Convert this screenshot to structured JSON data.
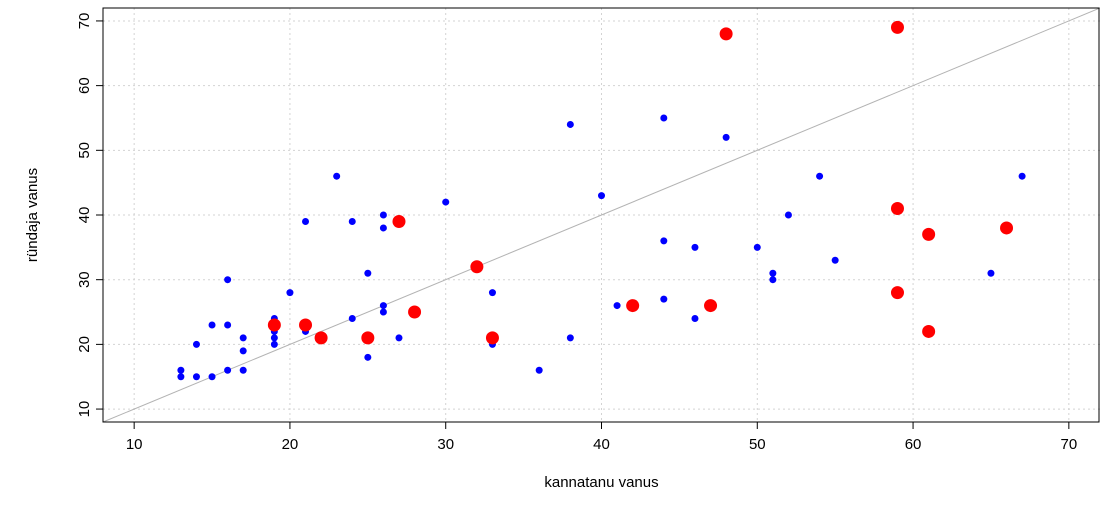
{
  "chart_data": {
    "type": "scatter",
    "xlabel": "kannatanu vanus",
    "ylabel": "ründaja vanus",
    "xlim": [
      8,
      72
    ],
    "ylim": [
      8,
      72
    ],
    "xticks": [
      "10",
      "20",
      "30",
      "40",
      "50",
      "60",
      "70"
    ],
    "yticks": [
      "10",
      "20",
      "30",
      "40",
      "50",
      "60",
      "70"
    ],
    "grid": true,
    "reference_line": {
      "type": "y=x"
    },
    "colors": {
      "series_1": "#0000ff",
      "series_2": "#ff0000",
      "reference_line": "#b3b3b3"
    },
    "series": [
      {
        "color": "#0000ff",
        "marker_size": "small",
        "points": [
          [
            13,
            16
          ],
          [
            13,
            15
          ],
          [
            14,
            15
          ],
          [
            14,
            20
          ],
          [
            15,
            15
          ],
          [
            15,
            23
          ],
          [
            16,
            30
          ],
          [
            16,
            23
          ],
          [
            16,
            16
          ],
          [
            17,
            21
          ],
          [
            17,
            19
          ],
          [
            17,
            16
          ],
          [
            19,
            24
          ],
          [
            19,
            23
          ],
          [
            19,
            22
          ],
          [
            19,
            21
          ],
          [
            19,
            20
          ],
          [
            20,
            28
          ],
          [
            21,
            39
          ],
          [
            21,
            22
          ],
          [
            22,
            21
          ],
          [
            23,
            46
          ],
          [
            24,
            39
          ],
          [
            24,
            24
          ],
          [
            25,
            31
          ],
          [
            25,
            18
          ],
          [
            26,
            40
          ],
          [
            26,
            38
          ],
          [
            26,
            26
          ],
          [
            26,
            25
          ],
          [
            27,
            21
          ],
          [
            30,
            42
          ],
          [
            33,
            28
          ],
          [
            33,
            20
          ],
          [
            36,
            16
          ],
          [
            38,
            54
          ],
          [
            38,
            21
          ],
          [
            40,
            43
          ],
          [
            41,
            26
          ],
          [
            44,
            55
          ],
          [
            44,
            36
          ],
          [
            44,
            27
          ],
          [
            46,
            35
          ],
          [
            46,
            24
          ],
          [
            48,
            52
          ],
          [
            50,
            35
          ],
          [
            51,
            31
          ],
          [
            51,
            30
          ],
          [
            52,
            40
          ],
          [
            54,
            46
          ],
          [
            55,
            33
          ],
          [
            65,
            31
          ],
          [
            67,
            46
          ]
        ]
      },
      {
        "color": "#ff0000",
        "marker_size": "large",
        "points": [
          [
            19,
            23
          ],
          [
            21,
            23
          ],
          [
            22,
            21
          ],
          [
            25,
            21
          ],
          [
            27,
            39
          ],
          [
            28,
            25
          ],
          [
            32,
            32
          ],
          [
            33,
            21
          ],
          [
            42,
            26
          ],
          [
            47,
            26
          ],
          [
            48,
            68
          ],
          [
            59,
            69
          ],
          [
            59,
            41
          ],
          [
            59,
            28
          ],
          [
            61,
            37
          ],
          [
            61,
            22
          ],
          [
            66,
            38
          ]
        ]
      }
    ]
  }
}
